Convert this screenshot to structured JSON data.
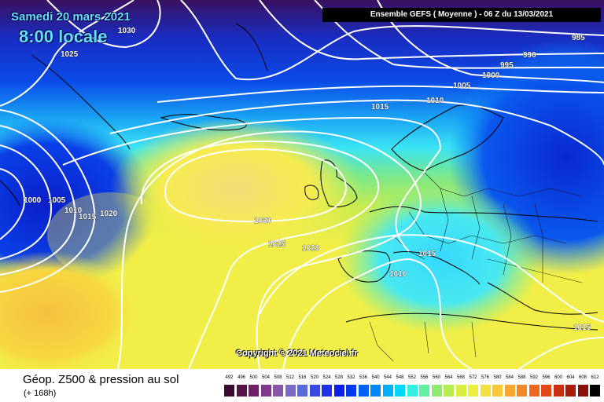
{
  "header": {
    "date": "Samedi 20 mars 2021",
    "time": "8:00 locale",
    "title": "Ensemble GEFS  ( Moyenne )  -  06 Z du 13/03/2021"
  },
  "map": {
    "copyright": "Copyright © 2021 Meteociel.fr",
    "isobar_labels": [
      "1030",
      "1025",
      "985",
      "990",
      "995",
      "1000",
      "1005",
      "1010",
      "1015",
      "1000",
      "1005",
      "1010",
      "1015",
      "1020",
      "1030",
      "1025",
      "1020",
      "1015",
      "1010",
      "1015"
    ],
    "colors": {
      "low": "#2a0a5e",
      "blue": "#0033dd",
      "cyan": "#33ddff",
      "green": "#66dd55",
      "yellow": "#f4f050",
      "isobar": "#ffffff",
      "coastline": "#000000"
    }
  },
  "footer": {
    "title": "Géop. Z500 & pression au sol",
    "subtitle": "(+ 168h)"
  },
  "legend": {
    "ticks": [
      "492",
      "496",
      "500",
      "504",
      "508",
      "512",
      "516",
      "520",
      "524",
      "528",
      "532",
      "536",
      "540",
      "544",
      "548",
      "552",
      "556",
      "560",
      "564",
      "568",
      "572",
      "576",
      "580",
      "584",
      "588",
      "592",
      "596",
      "600",
      "604",
      "608",
      "612"
    ],
    "colors": [
      "#3a0c33",
      "#551448",
      "#6e2066",
      "#7c3a88",
      "#8a55a8",
      "#7a6ac4",
      "#5a6ad8",
      "#3a4ae0",
      "#2030e6",
      "#0c1ee8",
      "#0038ee",
      "#0060f4",
      "#0088f8",
      "#00b0fc",
      "#00d8ff",
      "#30f0e0",
      "#60f0a0",
      "#90ec70",
      "#b8ec50",
      "#d8ee40",
      "#ecee40",
      "#f4e040",
      "#f8c838",
      "#f8a830",
      "#f48828",
      "#f06820",
      "#e04818",
      "#c83010",
      "#a81c0c",
      "#881008",
      "#000000"
    ]
  }
}
